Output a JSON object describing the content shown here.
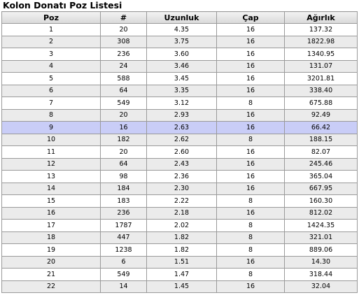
{
  "title": "Kolon Donatı Poz Listesi",
  "table": {
    "headers": [
      "Poz",
      "#",
      "Uzunluk",
      "Çap",
      "Ağırlık"
    ],
    "selected_row": 8,
    "rows": [
      [
        "1",
        "20",
        "4.35",
        "16",
        "137.32"
      ],
      [
        "2",
        "308",
        "3.75",
        "16",
        "1822.98"
      ],
      [
        "3",
        "236",
        "3.60",
        "16",
        "1340.95"
      ],
      [
        "4",
        "24",
        "3.46",
        "16",
        "131.07"
      ],
      [
        "5",
        "588",
        "3.45",
        "16",
        "3201.81"
      ],
      [
        "6",
        "64",
        "3.35",
        "16",
        "338.40"
      ],
      [
        "7",
        "549",
        "3.12",
        "8",
        "675.88"
      ],
      [
        "8",
        "20",
        "2.93",
        "16",
        "92.49"
      ],
      [
        "9",
        "16",
        "2.63",
        "16",
        "66.42"
      ],
      [
        "10",
        "182",
        "2.62",
        "8",
        "188.15"
      ],
      [
        "11",
        "20",
        "2.60",
        "16",
        "82.07"
      ],
      [
        "12",
        "64",
        "2.43",
        "16",
        "245.46"
      ],
      [
        "13",
        "98",
        "2.36",
        "16",
        "365.04"
      ],
      [
        "14",
        "184",
        "2.30",
        "16",
        "667.95"
      ],
      [
        "15",
        "183",
        "2.22",
        "8",
        "160.30"
      ],
      [
        "16",
        "236",
        "2.18",
        "16",
        "812.02"
      ],
      [
        "17",
        "1787",
        "2.02",
        "8",
        "1424.35"
      ],
      [
        "18",
        "447",
        "1.82",
        "8",
        "321.01"
      ],
      [
        "19",
        "1238",
        "1.82",
        "8",
        "889.06"
      ],
      [
        "20",
        "6",
        "1.51",
        "16",
        "14.30"
      ],
      [
        "21",
        "549",
        "1.47",
        "8",
        "318.44"
      ],
      [
        "22",
        "14",
        "1.45",
        "16",
        "32.04"
      ]
    ]
  }
}
